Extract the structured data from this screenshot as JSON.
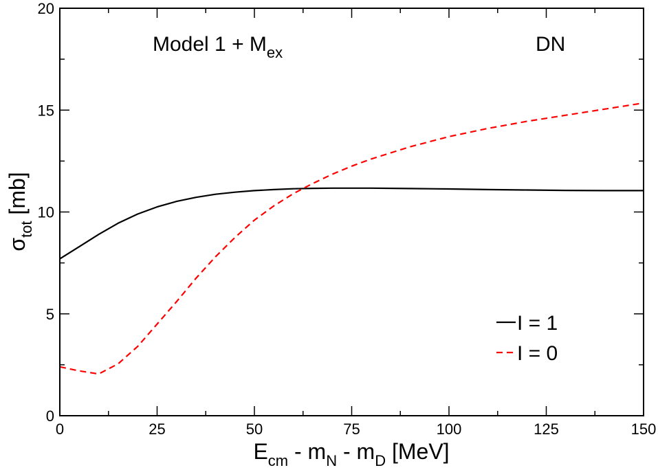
{
  "chart_data": {
    "type": "line",
    "annotations": {
      "model_main": "Model 1 + M",
      "model_sub": "ex",
      "channel": "DN"
    },
    "xlabel": {
      "main": "E",
      "sub1": "cm",
      "mid1": " - m",
      "sub2": "N",
      "mid2": " - m",
      "sub3": "D",
      "tail": " [MeV]"
    },
    "ylabel": {
      "main": "σ",
      "sub": "tot",
      "tail": " [mb]"
    },
    "xlim": [
      0,
      150
    ],
    "ylim": [
      0,
      20
    ],
    "xticks": [
      0,
      25,
      50,
      75,
      100,
      125,
      150
    ],
    "yticks": [
      0,
      5,
      10,
      15,
      20
    ],
    "legend_position": "lower-right",
    "series": [
      {
        "name": "I = 1",
        "color": "#000000",
        "dash": "solid",
        "x": [
          0,
          5,
          10,
          15,
          20,
          25,
          30,
          35,
          40,
          45,
          50,
          55,
          60,
          65,
          70,
          75,
          80,
          90,
          100,
          110,
          120,
          130,
          140,
          150
        ],
        "y": [
          7.7,
          8.3,
          8.9,
          9.45,
          9.9,
          10.25,
          10.52,
          10.72,
          10.87,
          10.97,
          11.05,
          11.1,
          11.14,
          11.16,
          11.17,
          11.17,
          11.17,
          11.15,
          11.13,
          11.1,
          11.08,
          11.06,
          11.05,
          11.05
        ]
      },
      {
        "name": "I = 0",
        "color": "#ff0000",
        "dash": "dashed",
        "x": [
          0,
          5,
          10,
          15,
          20,
          25,
          30,
          35,
          40,
          45,
          50,
          55,
          60,
          65,
          70,
          75,
          80,
          90,
          100,
          110,
          120,
          130,
          140,
          150
        ],
        "y": [
          2.4,
          2.2,
          2.05,
          2.55,
          3.4,
          4.5,
          5.6,
          6.75,
          7.8,
          8.75,
          9.6,
          10.3,
          10.9,
          11.4,
          11.85,
          12.25,
          12.6,
          13.2,
          13.7,
          14.1,
          14.45,
          14.75,
          15.05,
          15.35
        ]
      }
    ]
  }
}
